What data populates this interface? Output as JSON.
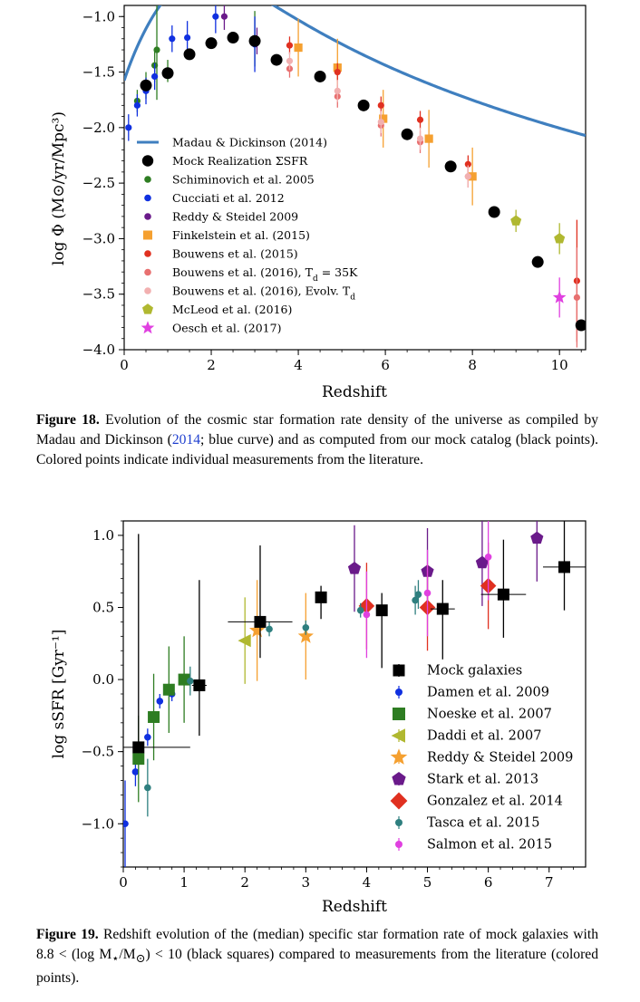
{
  "figure18": {
    "caption_label": "Figure 18.",
    "caption_pre": "Evolution of the cosmic star formation rate density of the universe as compiled by Madau and Dickinson (",
    "caption_cite": "2014",
    "caption_post": "; blue curve) and as computed from our mock catalog (black points). Colored points indicate individual measurements from the literature.",
    "xlabel": "Redshift",
    "ylabel": "log Φ (M⊙/yr/Mpc³)",
    "legend": [
      {
        "label": "Madau & Dickinson (2014)"
      },
      {
        "label": "Mock Realization ΣSFR"
      },
      {
        "label": "Schiminovich et al. 2005"
      },
      {
        "label": "Cucciati et al. 2012"
      },
      {
        "label": "Reddy & Steidel 2009"
      },
      {
        "label": "Finkelstein et al. (2015)"
      },
      {
        "label": "Bouwens et al. (2015)"
      },
      {
        "label": "Bouwens et al. (2016), T",
        "sub": "d",
        "rest": " = 35K"
      },
      {
        "label": "Bouwens et al. (2016), Evolv. T",
        "sub": "d",
        "rest": ""
      },
      {
        "label": "McLeod et al. (2016)"
      },
      {
        "label": "Oesch et al. (2017)"
      }
    ]
  },
  "figure19": {
    "caption_label": "Figure 19.",
    "caption_pre": "Redshift evolution of the (median) specific star formation rate of mock galaxies with 8.8 < (log M",
    "caption_sub1": "⋆",
    "caption_mid": "/M",
    "caption_sub2": "⊙",
    "caption_post": ") < 10 (black squares) compared to measurements from the literature (colored points).",
    "xlabel": "Redshift",
    "ylabel": "log sSFR [Gyr⁻¹]",
    "legend": [
      {
        "label": "Mock galaxies"
      },
      {
        "label": "Damen et al. 2009"
      },
      {
        "label": "Noeske et al. 2007"
      },
      {
        "label": "Daddi et al. 2007"
      },
      {
        "label": "Reddy & Steidel 2009"
      },
      {
        "label": "Stark et al. 2013"
      },
      {
        "label": "Gonzalez et al. 2014"
      },
      {
        "label": "Tasca et al. 2015"
      },
      {
        "label": "Salmon et al. 2015"
      }
    ]
  },
  "chart_data": [
    {
      "type": "scatter",
      "xlabel": "Redshift",
      "ylabel": "log Φ (M⊙/yr/Mpc³)",
      "xlim": [
        0,
        10.6
      ],
      "ylim": [
        -4.0,
        -0.9
      ],
      "xticks": [
        "0",
        "2",
        "4",
        "6",
        "8",
        "10"
      ],
      "yticks": [
        "−4.0",
        "−3.5",
        "−3.0",
        "−2.5",
        "−2.0",
        "−1.5",
        "−1.0"
      ],
      "xtick_values": [
        0,
        2,
        4,
        6,
        8,
        10
      ],
      "ytick_values": [
        -4.0,
        -3.5,
        -3.0,
        -2.5,
        -2.0,
        -1.5,
        -1.0
      ],
      "legend_position": "lower-left",
      "series": [
        {
          "name": "Madau & Dickinson (2014)",
          "kind": "curve",
          "color": "#3f7fbf"
        },
        {
          "name": "Mock Realization ΣSFR",
          "marker": "circle",
          "color": "#000000",
          "points": [
            [
              0.5,
              -1.62
            ],
            [
              1.0,
              -1.51
            ],
            [
              1.5,
              -1.34
            ],
            [
              2.0,
              -1.24
            ],
            [
              2.5,
              -1.19
            ],
            [
              3.0,
              -1.22
            ],
            [
              3.5,
              -1.39
            ],
            [
              4.5,
              -1.54
            ],
            [
              5.5,
              -1.8
            ],
            [
              6.5,
              -2.06
            ],
            [
              7.5,
              -2.35
            ],
            [
              8.5,
              -2.76
            ],
            [
              9.5,
              -3.21
            ],
            [
              10.5,
              -3.78
            ]
          ]
        },
        {
          "name": "Schiminovich et al. 2005",
          "marker": "circle",
          "color": "#2e7d22",
          "points": [
            [
              0.3,
              -1.76,
              0.1
            ],
            [
              0.5,
              -1.62,
              0.12
            ],
            [
              0.7,
              -1.44,
              0.15
            ],
            [
              1.0,
              -1.49,
              0.1
            ],
            [
              3.0,
              -1.2,
              0.25
            ],
            [
              0.75,
              -1.3,
              0.45
            ]
          ]
        },
        {
          "name": "Cucciati et al. 2012",
          "marker": "circle",
          "color": "#1030e0",
          "points": [
            [
              0.1,
              -2.0,
              0.12
            ],
            [
              0.3,
              -1.8,
              0.1
            ],
            [
              0.5,
              -1.67,
              0.12
            ],
            [
              0.7,
              -1.54,
              0.12
            ],
            [
              1.1,
              -1.2,
              0.12
            ],
            [
              1.45,
              -1.19,
              0.15
            ],
            [
              2.1,
              -1.0,
              0.15
            ],
            [
              3.0,
              -1.25,
              0.25
            ]
          ]
        },
        {
          "name": "Reddy & Steidel 2009",
          "marker": "circle",
          "color": "#6a1a8a",
          "points": [
            [
              2.3,
              -1.0,
              0.12
            ],
            [
              3.05,
              -1.22,
              0.12
            ]
          ]
        },
        {
          "name": "Finkelstein et al. (2015)",
          "marker": "square",
          "color": "#f5a030",
          "points": [
            [
              4.0,
              -1.28,
              0.26
            ],
            [
              4.9,
              -1.46,
              0.26
            ],
            [
              5.95,
              -1.92,
              0.26
            ],
            [
              7.0,
              -2.1,
              0.26
            ],
            [
              8.0,
              -2.44,
              0.26
            ]
          ]
        },
        {
          "name": "Bouwens et al. (2015)",
          "marker": "circle",
          "color": "#e03020",
          "points": [
            [
              3.8,
              -1.26,
              0.08
            ],
            [
              4.9,
              -1.5,
              0.08
            ],
            [
              5.9,
              -1.8,
              0.08
            ],
            [
              6.8,
              -1.93,
              0.08
            ],
            [
              7.9,
              -2.33,
              0.08
            ],
            [
              10.4,
              -3.38,
              0.55
            ]
          ]
        },
        {
          "name": "Bouwens et al. (2016), Td = 35K",
          "marker": "circle",
          "color": "#e87070",
          "points": [
            [
              3.8,
              -1.47,
              0.08
            ],
            [
              4.9,
              -1.72,
              0.1
            ],
            [
              5.9,
              -1.98,
              0.1
            ],
            [
              6.8,
              -2.13,
              0.1
            ],
            [
              7.9,
              -2.44,
              0.1
            ],
            [
              10.4,
              -3.53,
              0.45
            ]
          ]
        },
        {
          "name": "Bouwens et al. (2016), Evolv. Td",
          "marker": "circle",
          "color": "#f2b0b0",
          "points": [
            [
              3.8,
              -1.4,
              0.08
            ],
            [
              4.9,
              -1.67,
              0.1
            ],
            [
              5.9,
              -1.95,
              0.1
            ],
            [
              6.8,
              -2.1,
              0.1
            ],
            [
              7.9,
              -2.44,
              0.1
            ]
          ]
        },
        {
          "name": "McLeod et al. (2016)",
          "marker": "pentagon",
          "color": "#b0b830",
          "points": [
            [
              9.0,
              -2.84,
              0.1
            ],
            [
              10.0,
              -3.0,
              0.14
            ]
          ]
        },
        {
          "name": "Oesch et al. (2017)",
          "marker": "star",
          "color": "#e040e0",
          "points": [
            [
              10.0,
              -3.53,
              0.18
            ]
          ]
        }
      ]
    },
    {
      "type": "scatter",
      "xlabel": "Redshift",
      "ylabel": "log sSFR [Gyr⁻¹]",
      "xlim": [
        0,
        7.6
      ],
      "ylim": [
        -1.3,
        1.1
      ],
      "xticks": [
        "0",
        "1",
        "2",
        "3",
        "4",
        "5",
        "6",
        "7"
      ],
      "yticks": [
        "−1.0",
        "−0.5",
        "0.0",
        "0.5",
        "1.0"
      ],
      "xtick_values": [
        0,
        1,
        2,
        3,
        4,
        5,
        6,
        7
      ],
      "ytick_values": [
        -1.0,
        -0.5,
        0.0,
        0.5,
        1.0
      ],
      "legend_position": "lower-right",
      "series": [
        {
          "name": "Mock galaxies",
          "marker": "square",
          "color": "#000000",
          "points": [
            [
              0.25,
              -0.47,
              0.02,
              1.48,
              0.85
            ],
            [
              1.25,
              -0.04,
              0.35,
              0.73,
              0.12
            ],
            [
              2.25,
              0.4,
              0.25,
              0.53,
              0.53
            ],
            [
              3.25,
              0.57,
              0.15,
              0.08,
              0.0
            ],
            [
              4.25,
              0.48,
              0.4,
              0.12,
              0.05
            ],
            [
              5.25,
              0.49,
              0.35,
              0.2,
              0.2
            ],
            [
              6.25,
              0.59,
              0.3,
              0.38,
              0.37
            ],
            [
              7.25,
              0.78,
              0.3,
              0.35,
              0.35
            ]
          ]
        },
        {
          "name": "Damen et al. 2009",
          "marker": "circle",
          "color": "#1030e0",
          "points": [
            [
              0.03,
              -1.0,
              0.3,
              0.3
            ],
            [
              0.2,
              -0.64,
              0.1,
              0.1
            ],
            [
              0.4,
              -0.4,
              0.06,
              0.06
            ],
            [
              0.6,
              -0.15,
              0.05,
              0.05
            ],
            [
              0.8,
              -0.1,
              0.05,
              0.05
            ]
          ]
        },
        {
          "name": "Noeske et al. 2007",
          "marker": "square",
          "color": "#2e7d22",
          "points": [
            [
              0.25,
              -0.55,
              0.3,
              0.3
            ],
            [
              0.5,
              -0.26,
              0.3,
              0.3
            ],
            [
              0.75,
              -0.07,
              0.3,
              0.3
            ],
            [
              1.0,
              0.0,
              0.3,
              0.3
            ]
          ]
        },
        {
          "name": "Daddi et al. 2007",
          "marker": "triangle-left",
          "color": "#b0b830",
          "points": [
            [
              2.0,
              0.27,
              0.3,
              0.3
            ]
          ]
        },
        {
          "name": "Reddy & Steidel 2009",
          "marker": "star",
          "color": "#f5a030",
          "points": [
            [
              2.2,
              0.34,
              0.35,
              0.35
            ],
            [
              3.0,
              0.3,
              0.3,
              0.3
            ]
          ]
        },
        {
          "name": "Stark et al. 2013",
          "marker": "pentagon",
          "color": "#6a1a8a",
          "points": [
            [
              3.8,
              0.77,
              0.3,
              0.3
            ],
            [
              5.0,
              0.75,
              0.3,
              0.3
            ],
            [
              5.9,
              0.81,
              0.3,
              0.3
            ],
            [
              6.8,
              0.98,
              0.3,
              0.3
            ]
          ]
        },
        {
          "name": "Gonzalez et al. 2014",
          "marker": "diamond",
          "color": "#e03020",
          "points": [
            [
              4.0,
              0.51,
              0.3,
              0.3
            ],
            [
              5.0,
              0.5,
              0.3,
              0.3
            ],
            [
              6.0,
              0.65,
              0.3,
              0.3
            ]
          ]
        },
        {
          "name": "Tasca et al. 2015",
          "marker": "circle",
          "color": "#2e7f7f",
          "points": [
            [
              0.4,
              -0.75,
              0.2,
              0.2
            ],
            [
              1.1,
              -0.01,
              0.1,
              0.1
            ],
            [
              2.4,
              0.35,
              0.05,
              0.05
            ],
            [
              3.0,
              0.36,
              0.05,
              0.05
            ],
            [
              3.9,
              0.48,
              0.05,
              0.05
            ],
            [
              4.8,
              0.55,
              0.1,
              0.1
            ],
            [
              4.85,
              0.59,
              0.1,
              0.1
            ]
          ]
        },
        {
          "name": "Salmon et al. 2015",
          "marker": "circle",
          "color": "#e040e0",
          "points": [
            [
              4.0,
              0.45,
              0.3,
              0.3
            ],
            [
              5.0,
              0.6,
              0.3,
              0.3
            ],
            [
              6.0,
              0.85,
              0.3,
              0.3
            ]
          ]
        }
      ]
    }
  ]
}
